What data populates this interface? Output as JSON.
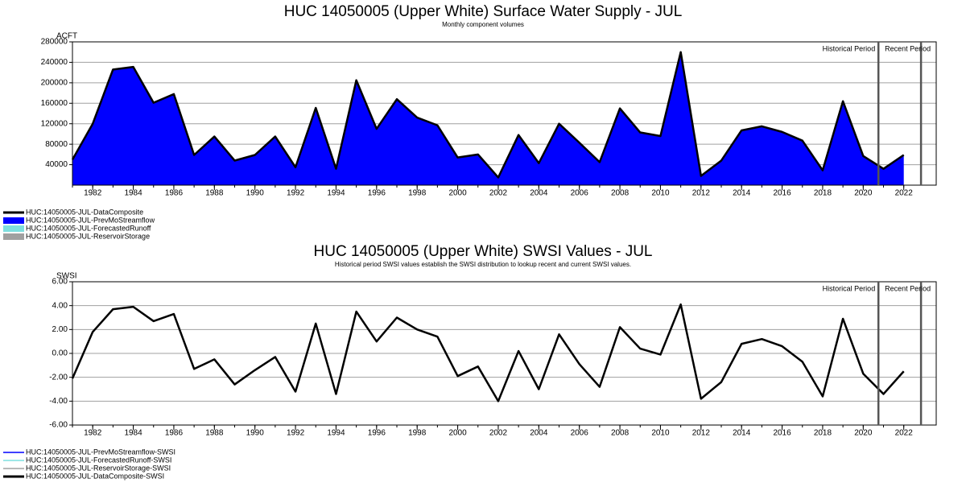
{
  "chart_data": [
    {
      "type": "area",
      "title": "HUC 14050005 (Upper White) Surface Water Supply - JUL",
      "subtitle": "Monthly component volumes",
      "y_label": "ACFT",
      "x": [
        1981,
        1982,
        1983,
        1984,
        1985,
        1986,
        1987,
        1988,
        1989,
        1990,
        1991,
        1992,
        1993,
        1994,
        1995,
        1996,
        1997,
        1998,
        1999,
        2000,
        2001,
        2002,
        2003,
        2004,
        2005,
        2006,
        2007,
        2008,
        2009,
        2010,
        2011,
        2012,
        2013,
        2014,
        2015,
        2016,
        2017,
        2018,
        2019,
        2020,
        2021,
        2022
      ],
      "xlim": [
        1981,
        2023.6
      ],
      "xticks": [
        1982,
        1984,
        1986,
        1988,
        1990,
        1992,
        1994,
        1996,
        1998,
        2000,
        2002,
        2004,
        2006,
        2008,
        2010,
        2012,
        2014,
        2016,
        2018,
        2020,
        2022
      ],
      "ylim": [
        0,
        280000
      ],
      "yticks": [
        40000,
        80000,
        120000,
        160000,
        200000,
        240000,
        280000
      ],
      "grid": true,
      "legend": "bottom-left",
      "annotations": [
        "Historical Period",
        "Recent Period"
      ],
      "period_lines": [
        2020.75,
        2022.85
      ],
      "series": [
        {
          "name": "HUC:14050005-JUL-DataComposite",
          "color": "#000000",
          "style": "line",
          "values": [
            50000,
            120000,
            226000,
            231000,
            161000,
            178000,
            59000,
            95000,
            48000,
            59000,
            95000,
            35000,
            151000,
            32000,
            205000,
            110000,
            168000,
            132000,
            117000,
            54000,
            60000,
            15000,
            98000,
            43000,
            120000,
            83000,
            45000,
            150000,
            103000,
            96000,
            260000,
            18000,
            48000,
            107000,
            115000,
            104000,
            87000,
            29000,
            164000,
            57000,
            32000,
            59000
          ]
        },
        {
          "name": "HUC:14050005-JUL-PrevMoStreamflow",
          "color": "#0000ff",
          "style": "area",
          "values": [
            50000,
            120000,
            226000,
            231000,
            161000,
            178000,
            59000,
            95000,
            48000,
            59000,
            95000,
            35000,
            151000,
            32000,
            205000,
            110000,
            168000,
            132000,
            117000,
            54000,
            60000,
            15000,
            98000,
            43000,
            120000,
            83000,
            45000,
            150000,
            103000,
            96000,
            260000,
            18000,
            48000,
            107000,
            115000,
            104000,
            87000,
            29000,
            164000,
            57000,
            32000,
            59000
          ]
        },
        {
          "name": "HUC:14050005-JUL-ForecastedRunoff",
          "color": "#7fdfdf",
          "style": "area",
          "values": [
            null,
            null,
            null,
            null,
            null,
            null,
            null,
            null,
            null,
            null,
            null,
            null,
            null,
            null,
            null,
            null,
            null,
            null,
            null,
            null,
            null,
            null,
            null,
            null,
            null,
            null,
            null,
            null,
            null,
            null,
            null,
            null,
            null,
            null,
            null,
            null,
            null,
            null,
            null,
            null,
            null,
            null
          ]
        },
        {
          "name": "HUC:14050005-JUL-ReservoirStorage",
          "color": "#a0a0a0",
          "style": "area",
          "values": [
            null,
            null,
            null,
            null,
            null,
            null,
            null,
            null,
            null,
            null,
            null,
            null,
            null,
            null,
            null,
            null,
            null,
            null,
            null,
            null,
            null,
            null,
            null,
            null,
            null,
            null,
            null,
            null,
            null,
            null,
            null,
            null,
            null,
            null,
            null,
            null,
            null,
            null,
            null,
            null,
            null,
            null
          ]
        }
      ]
    },
    {
      "type": "line",
      "title": "HUC 14050005 (Upper White) SWSI Values - JUL",
      "subtitle": "Historical period SWSI values establish the SWSI distribution to lookup recent and current SWSI values.",
      "y_label": "SWSI",
      "x": [
        1981,
        1982,
        1983,
        1984,
        1985,
        1986,
        1987,
        1988,
        1989,
        1990,
        1991,
        1992,
        1993,
        1994,
        1995,
        1996,
        1997,
        1998,
        1999,
        2000,
        2001,
        2002,
        2003,
        2004,
        2005,
        2006,
        2007,
        2008,
        2009,
        2010,
        2011,
        2012,
        2013,
        2014,
        2015,
        2016,
        2017,
        2018,
        2019,
        2020,
        2021,
        2022
      ],
      "xlim": [
        1981,
        2023.6
      ],
      "xticks": [
        1982,
        1984,
        1986,
        1988,
        1990,
        1992,
        1994,
        1996,
        1998,
        2000,
        2002,
        2004,
        2006,
        2008,
        2010,
        2012,
        2014,
        2016,
        2018,
        2020,
        2022
      ],
      "ylim": [
        -6,
        6
      ],
      "yticks": [
        {
          "value": -6,
          "label": "-6.00"
        },
        {
          "value": -4,
          "label": "-4.00"
        },
        {
          "value": -2,
          "label": "-2.00"
        },
        {
          "value": 0,
          "label": "0.00"
        },
        {
          "value": 2,
          "label": "2.00"
        },
        {
          "value": 4,
          "label": "4.00"
        },
        {
          "value": 6,
          "label": "6.00"
        }
      ],
      "grid": true,
      "legend": "bottom-left",
      "annotations": [
        "Historical Period",
        "Recent Period"
      ],
      "period_lines": [
        2020.75,
        2022.85
      ],
      "series": [
        {
          "name": "HUC:14050005-JUL-PrevMoStreamflow-SWSI",
          "color": "#0000ff",
          "style": "line",
          "values": [
            null,
            null,
            null,
            null,
            null,
            null,
            null,
            null,
            null,
            null,
            null,
            null,
            null,
            null,
            null,
            null,
            null,
            null,
            null,
            null,
            null,
            null,
            null,
            null,
            null,
            null,
            null,
            null,
            null,
            null,
            null,
            null,
            null,
            null,
            null,
            null,
            null,
            null,
            null,
            null,
            null,
            null
          ]
        },
        {
          "name": "HUC:14050005-JUL-ForecastedRunoff-SWSI",
          "color": "#7fdfdf",
          "style": "line",
          "values": [
            null,
            null,
            null,
            null,
            null,
            null,
            null,
            null,
            null,
            null,
            null,
            null,
            null,
            null,
            null,
            null,
            null,
            null,
            null,
            null,
            null,
            null,
            null,
            null,
            null,
            null,
            null,
            null,
            null,
            null,
            null,
            null,
            null,
            null,
            null,
            null,
            null,
            null,
            null,
            null,
            null,
            null
          ]
        },
        {
          "name": "HUC:14050005-JUL-ReservoirStorage-SWSI",
          "color": "#a0a0a0",
          "style": "line",
          "values": [
            null,
            null,
            null,
            null,
            null,
            null,
            null,
            null,
            null,
            null,
            null,
            null,
            null,
            null,
            null,
            null,
            null,
            null,
            null,
            null,
            null,
            null,
            null,
            null,
            null,
            null,
            null,
            null,
            null,
            null,
            null,
            null,
            null,
            null,
            null,
            null,
            null,
            null,
            null,
            null,
            null,
            null
          ]
        },
        {
          "name": "HUC:14050005-JUL-DataComposite-SWSI",
          "color": "#000000",
          "style": "line",
          "values": [
            -2.1,
            1.8,
            3.7,
            3.9,
            2.7,
            3.3,
            -1.3,
            -0.5,
            -2.6,
            -1.4,
            -0.3,
            -3.2,
            2.5,
            -3.4,
            3.5,
            1.0,
            3.0,
            2.0,
            1.4,
            -1.9,
            -1.1,
            -4.0,
            0.2,
            -3.0,
            1.6,
            -0.9,
            -2.8,
            2.2,
            0.4,
            -0.1,
            4.1,
            -3.8,
            -2.4,
            0.8,
            1.2,
            0.6,
            -0.7,
            -3.6,
            2.9,
            -1.7,
            -3.4,
            -1.5
          ]
        }
      ]
    }
  ]
}
